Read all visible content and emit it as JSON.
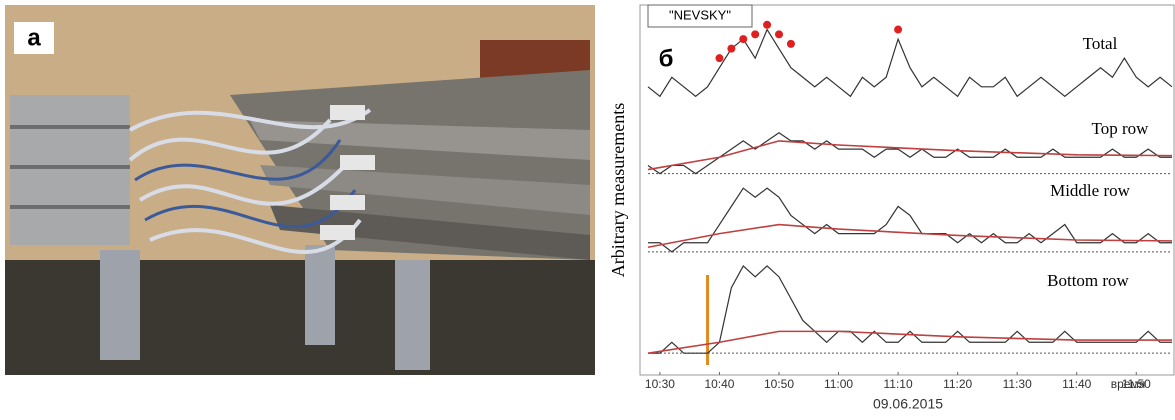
{
  "panel_a": {
    "label": "а"
  },
  "figure_b": {
    "label": "б",
    "tag": "\"NEVSKY\"",
    "ylabel": "Arbitrary measurements",
    "xlabel": "время",
    "date": "09.06.2015"
  },
  "chart_data": [
    {
      "type": "line",
      "title": "Total",
      "color": "#333333",
      "x": [
        628,
        630,
        632,
        634,
        636,
        638,
        640,
        642,
        644,
        646,
        648,
        650,
        652,
        654,
        656,
        658,
        660,
        662,
        664,
        666,
        668,
        670,
        672,
        674,
        676,
        678,
        680,
        682,
        684,
        686,
        688,
        690,
        692,
        694,
        696,
        698,
        700,
        702,
        704,
        706,
        708,
        710,
        712,
        714,
        716
      ],
      "values": [
        4,
        3,
        5,
        4,
        3,
        4,
        6,
        8,
        9,
        7,
        10,
        8,
        6,
        5,
        4,
        5,
        4,
        3,
        5,
        4,
        5,
        9,
        6,
        4,
        5,
        4,
        3,
        5,
        4,
        4,
        5,
        3,
        4,
        5,
        4,
        3,
        4,
        5,
        6,
        5,
        7,
        5,
        4,
        5,
        4
      ],
      "markers": {
        "color": "#e02020",
        "x": [
          640,
          642,
          644,
          646,
          648,
          650,
          652,
          670
        ],
        "values": [
          7,
          8,
          9,
          9.5,
          10.5,
          9.5,
          8.5,
          10
        ]
      },
      "xlim": [
        628,
        716
      ],
      "ylim": [
        0,
        11
      ]
    },
    {
      "type": "line",
      "title": "Top row",
      "color": "#333333",
      "trend_color": "#c04040",
      "baseline": 2,
      "x": [
        628,
        630,
        632,
        634,
        636,
        638,
        640,
        642,
        644,
        646,
        648,
        650,
        652,
        654,
        656,
        658,
        660,
        662,
        664,
        666,
        668,
        670,
        672,
        674,
        676,
        678,
        680,
        682,
        684,
        686,
        688,
        690,
        692,
        694,
        696,
        698,
        700,
        702,
        704,
        706,
        708,
        710,
        712,
        714,
        716
      ],
      "values": [
        3,
        2,
        3,
        3,
        2,
        3,
        4,
        5,
        6,
        5,
        6,
        7,
        6,
        6,
        5,
        6,
        5,
        5,
        5,
        4,
        5,
        5,
        4,
        5,
        4,
        4,
        5,
        4,
        4,
        4,
        5,
        4,
        4,
        4,
        5,
        4,
        4,
        4,
        4,
        5,
        4,
        4,
        5,
        4,
        4
      ],
      "trend_x": [
        628,
        640,
        650,
        660,
        680,
        700,
        716
      ],
      "trend": [
        2.5,
        4,
        6,
        5.5,
        4.8,
        4.3,
        4.2
      ],
      "xlim": [
        628,
        716
      ],
      "ylim": [
        0,
        11
      ]
    },
    {
      "type": "line",
      "title": "Middle row",
      "color": "#333333",
      "trend_color": "#c04040",
      "baseline": 2,
      "x": [
        628,
        630,
        632,
        634,
        636,
        638,
        640,
        642,
        644,
        646,
        648,
        650,
        652,
        654,
        656,
        658,
        660,
        662,
        664,
        666,
        668,
        670,
        672,
        674,
        676,
        678,
        680,
        682,
        684,
        686,
        688,
        690,
        692,
        694,
        696,
        698,
        700,
        702,
        704,
        706,
        708,
        710,
        712,
        714,
        716
      ],
      "values": [
        3,
        3,
        2,
        3,
        3,
        3,
        5,
        7,
        9,
        8,
        9,
        8,
        6,
        5,
        4,
        5,
        4,
        4,
        4,
        4,
        5,
        7,
        6,
        4,
        4,
        4,
        3,
        4,
        3,
        4,
        3,
        3,
        4,
        3,
        4,
        5,
        3,
        3,
        3,
        4,
        3,
        3,
        4,
        3,
        3
      ],
      "trend_x": [
        628,
        640,
        650,
        660,
        680,
        700,
        716
      ],
      "trend": [
        2.5,
        4,
        5,
        4.5,
        3.8,
        3.3,
        3.2
      ],
      "xlim": [
        628,
        716
      ],
      "ylim": [
        0,
        11
      ]
    },
    {
      "type": "line",
      "title": "Bottom row",
      "color": "#333333",
      "trend_color": "#c04040",
      "baseline": 2,
      "event_x": 638,
      "event_color": "#e08a20",
      "x": [
        628,
        630,
        632,
        634,
        636,
        638,
        640,
        642,
        644,
        646,
        648,
        650,
        652,
        654,
        656,
        658,
        660,
        662,
        664,
        666,
        668,
        670,
        672,
        674,
        676,
        678,
        680,
        682,
        684,
        686,
        688,
        690,
        692,
        694,
        696,
        698,
        700,
        702,
        704,
        706,
        708,
        710,
        712,
        714,
        716
      ],
      "values": [
        2,
        2,
        3,
        2,
        2,
        2,
        3,
        8,
        10,
        9,
        10,
        9,
        7,
        5,
        4,
        3,
        4,
        4,
        3,
        4,
        3,
        3,
        4,
        3,
        3,
        3,
        4,
        3,
        3,
        3,
        3,
        4,
        3,
        3,
        3,
        4,
        3,
        3,
        3,
        3,
        3,
        3,
        4,
        3,
        3
      ],
      "trend_x": [
        628,
        640,
        650,
        660,
        680,
        700,
        716
      ],
      "trend": [
        2,
        3,
        4,
        4,
        3.5,
        3.2,
        3.2
      ],
      "xlim": [
        628,
        716
      ],
      "ylim": [
        0,
        11
      ],
      "xticks": [
        {
          "value": 630,
          "label": "10:30"
        },
        {
          "value": 640,
          "label": "10:40"
        },
        {
          "value": 650,
          "label": "10:50"
        },
        {
          "value": 660,
          "label": "11:00"
        },
        {
          "value": 670,
          "label": "11:10"
        },
        {
          "value": 680,
          "label": "11:20"
        },
        {
          "value": 690,
          "label": "11:30"
        },
        {
          "value": 700,
          "label": "11:40"
        },
        {
          "value": 710,
          "label": "11:50"
        }
      ]
    }
  ]
}
